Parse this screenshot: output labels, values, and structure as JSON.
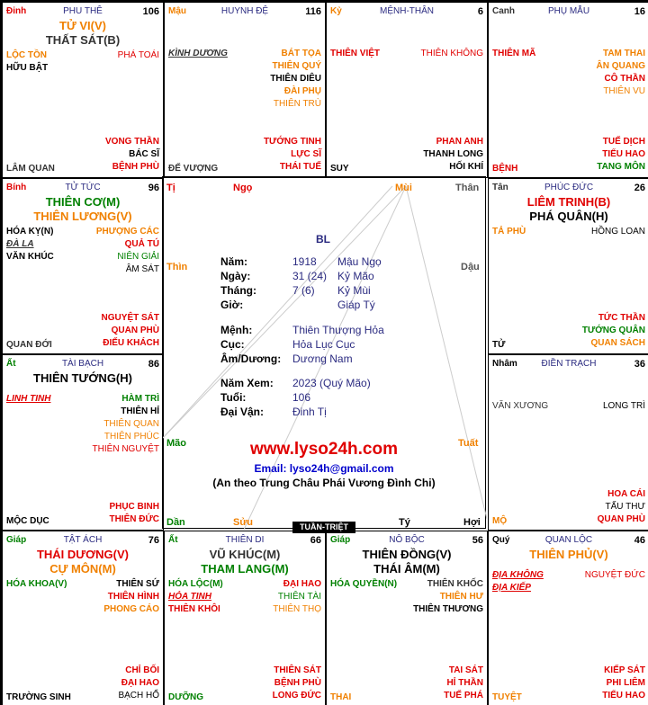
{
  "colors": {
    "red": "#e00000",
    "orange": "#f08000",
    "green": "#008000",
    "black": "#000000",
    "navy": "#2a2a80",
    "blue": "#0000cc"
  },
  "center": {
    "bl": "BL",
    "branches": {
      "ti": "Tị",
      "ngo": "Ngọ",
      "mui": "Mùi",
      "than": "Thân",
      "thin": "Thìn",
      "dau": "Dậu",
      "mao": "Mão",
      "tuat": "Tuất",
      "dan": "Dần",
      "suu": "Sửu",
      "ty": "Tý",
      "hoi": "Hợi"
    },
    "rows": [
      {
        "label": "Năm:",
        "v1": "1918",
        "v2": "Mậu Ngọ"
      },
      {
        "label": "Ngày:",
        "v1": "31 (24)",
        "v2": "Kỷ Mão"
      },
      {
        "label": "Tháng:",
        "v1": "7 (6)",
        "v2": "Kỷ Mùi"
      },
      {
        "label": "Giờ:",
        "v1": "",
        "v2": "Giáp Tý"
      }
    ],
    "rows2": [
      {
        "label": "Mệnh:",
        "v1": "Thiên Thượng Hỏa"
      },
      {
        "label": "Cục:",
        "v1": "Hỏa Lục Cục"
      },
      {
        "label": "Âm/Dương:",
        "v1": "Dương Nam"
      }
    ],
    "rows3": [
      {
        "label": "Năm Xem:",
        "v1": "2023 (Quý Mão)"
      },
      {
        "label": "Tuổi:",
        "v1": "106"
      },
      {
        "label": "Đại Vận:",
        "v1": "Đinh Tị"
      }
    ],
    "site": "www.lyso24h.com",
    "email": "Email: lyso24h@gmail.com",
    "note": "(An theo Trung Châu Phái Vương Đình Chi)",
    "tuan_triet": "TUẦN-TRIỆT"
  },
  "cells": [
    {
      "id": "ty",
      "can": "Đinh",
      "cung": "PHU THÊ",
      "num": "106",
      "main": [
        {
          "t": "TỬ VI(V)",
          "c": "orange"
        },
        {
          "t": "THẤT SÁT(B)",
          "c": "dim"
        }
      ],
      "left": [
        {
          "t": "LỘC TỒN",
          "c": "orange"
        },
        {
          "t": "HỮU BẬT",
          "c": "black"
        }
      ],
      "right": [
        {
          "t": "PHÁ TOÁI",
          "c": "red",
          "n": 1
        }
      ],
      "br": [
        {
          "t": "VONG THẦN",
          "c": "red"
        },
        {
          "t": "BÁC SĨ",
          "c": "black"
        },
        {
          "t": "BỆNH PHÙ",
          "c": "red"
        }
      ],
      "bl": {
        "t": "LÂM QUAN",
        "c": "dim"
      }
    },
    {
      "id": "ngo",
      "can": "Mậu",
      "cung": "HUYNH ĐỆ",
      "num": "116",
      "main": [],
      "left": [
        {
          "t": "KÌNH DƯƠNG",
          "c": "dim",
          "u": 1
        }
      ],
      "right": [
        {
          "t": "BÁT TỌA",
          "c": "orange"
        },
        {
          "t": "THIÊN QUÝ",
          "c": "orange"
        },
        {
          "t": "THIÊN DIÊU",
          "c": "black"
        },
        {
          "t": "ĐÀI PHỤ",
          "c": "orange"
        },
        {
          "t": "THIÊN TRÙ",
          "c": "orange",
          "n": 1
        }
      ],
      "br": [
        {
          "t": "TƯỚNG TINH",
          "c": "red"
        },
        {
          "t": "LỰC SĨ",
          "c": "red"
        },
        {
          "t": "THÁI TUẾ",
          "c": "red"
        }
      ],
      "bl": {
        "t": "ĐẾ VƯỢNG",
        "c": "dim"
      }
    },
    {
      "id": "mui",
      "can": "Kỷ",
      "cung": "MỆNH-THÂN",
      "num": "6",
      "main": [],
      "left": [
        {
          "t": "THIÊN VIỆT",
          "c": "red"
        }
      ],
      "right": [
        {
          "t": "THIÊN KHÔNG",
          "c": "red",
          "n": 1
        }
      ],
      "br": [
        {
          "t": "PHAN ANH",
          "c": "red"
        },
        {
          "t": "THANH LONG",
          "c": "black"
        },
        {
          "t": "HỐI KHÍ",
          "c": "black"
        }
      ],
      "bl": {
        "t": "SUY",
        "c": "black"
      }
    },
    {
      "id": "than",
      "can": "Canh",
      "cung": "PHỤ MẪU",
      "num": "16",
      "main": [],
      "left": [
        {
          "t": "THIÊN MÃ",
          "c": "red"
        }
      ],
      "right": [
        {
          "t": "TAM THAI",
          "c": "orange"
        },
        {
          "t": "ÂN QUANG",
          "c": "orange"
        },
        {
          "t": "CÔ THẦN",
          "c": "red"
        },
        {
          "t": "THIÊN VU",
          "c": "orange",
          "n": 1
        }
      ],
      "br": [
        {
          "t": "TUẾ DỊCH",
          "c": "red"
        },
        {
          "t": "TIỂU HAO",
          "c": "red"
        },
        {
          "t": "TANG MÔN",
          "c": "green"
        }
      ],
      "bl": {
        "t": "BỆNH",
        "c": "red"
      }
    },
    {
      "id": "thin",
      "can": "Bính",
      "cung": "TỬ TỨC",
      "num": "96",
      "main": [
        {
          "t": "THIÊN CƠ(M)",
          "c": "green"
        },
        {
          "t": "THIÊN LƯƠNG(V)",
          "c": "orange"
        }
      ],
      "left": [
        {
          "t": "HÓA KỴ(N)",
          "c": "black"
        },
        {
          "t": "ĐÀ LA",
          "c": "dim",
          "u": 1
        },
        {
          "t": "VĂN KHÚC",
          "c": "black"
        }
      ],
      "right": [
        {
          "t": "PHƯỢNG CÁC",
          "c": "orange"
        },
        {
          "t": "QUẢ TÚ",
          "c": "red"
        },
        {
          "t": "NIÊN GIẢI",
          "c": "green",
          "n": 1
        },
        {
          "t": "ÂM SÁT",
          "c": "black",
          "n": 1
        }
      ],
      "br": [
        {
          "t": "NGUYỆT SÁT",
          "c": "red"
        },
        {
          "t": "QUAN PHÙ",
          "c": "red"
        },
        {
          "t": "ĐIẾU KHÁCH",
          "c": "red"
        }
      ],
      "bl": {
        "t": "QUAN ĐỚI",
        "c": "dim"
      }
    },
    {
      "id": "dau",
      "can": "Tân",
      "cung": "PHÚC ĐỨC",
      "num": "26",
      "main": [
        {
          "t": "LIÊM TRINH(B)",
          "c": "red"
        },
        {
          "t": "PHÁ QUÂN(H)",
          "c": "black"
        }
      ],
      "left": [
        {
          "t": "TẢ PHÙ",
          "c": "orange"
        }
      ],
      "right": [
        {
          "t": "HỒNG LOAN",
          "c": "black",
          "n": 1
        }
      ],
      "br": [
        {
          "t": "TỨC THẦN",
          "c": "red"
        },
        {
          "t": "TƯỚNG QUÂN",
          "c": "green"
        },
        {
          "t": "QUAN SÁCH",
          "c": "orange"
        }
      ],
      "bl": {
        "t": "TỬ",
        "c": "black"
      }
    },
    {
      "id": "mao",
      "can": "Ất",
      "cung": "TÀI BẠCH",
      "num": "86",
      "main": [
        {
          "t": "THIÊN TƯỚNG(H)",
          "c": "black"
        }
      ],
      "left": [
        {
          "t": "LINH TINH",
          "c": "red",
          "u": 1
        }
      ],
      "right": [
        {
          "t": "HÀM TRÌ",
          "c": "green"
        },
        {
          "t": "THIÊN HỈ",
          "c": "black"
        },
        {
          "t": "THIÊN QUAN",
          "c": "orange",
          "n": 1
        },
        {
          "t": "THIÊN PHÚC",
          "c": "orange",
          "n": 1
        },
        {
          "t": "THIÊN NGUYỆT",
          "c": "red",
          "n": 1
        }
      ],
      "br": [
        {
          "t": "PHỤC BINH",
          "c": "red"
        },
        {
          "t": "THIÊN ĐỨC",
          "c": "red"
        }
      ],
      "bl": {
        "t": "MỘC DỤC",
        "c": "black"
      }
    },
    {
      "id": "tuat",
      "can": "Nhâm",
      "cung": "ĐIỀN TRẠCH",
      "num": "36",
      "main": [],
      "left": [
        {
          "t": "VĂN XƯƠNG",
          "c": "dim",
          "n": 1
        }
      ],
      "right": [
        {
          "t": "LONG TRÌ",
          "c": "black",
          "n": 1
        }
      ],
      "br": [
        {
          "t": "HOA CÁI",
          "c": "red"
        },
        {
          "t": "TẤU THƯ",
          "c": "black",
          "n": 1
        },
        {
          "t": "QUAN PHÙ",
          "c": "red"
        }
      ],
      "bl": {
        "t": "MỘ",
        "c": "orange"
      }
    },
    {
      "id": "dan",
      "can": "Giáp",
      "cung": "TẬT ÁCH",
      "num": "76",
      "main": [
        {
          "t": "THÁI DƯƠNG(V)",
          "c": "red"
        },
        {
          "t": "CỰ MÔN(M)",
          "c": "orange"
        }
      ],
      "left": [
        {
          "t": "HÓA KHOA(V)",
          "c": "green"
        }
      ],
      "right": [
        {
          "t": "THIÊN SỨ",
          "c": "black"
        },
        {
          "t": "THIÊN HÌNH",
          "c": "red"
        },
        {
          "t": "PHONG CÁO",
          "c": "orange"
        }
      ],
      "br": [
        {
          "t": "CHỈ BỐI",
          "c": "red"
        },
        {
          "t": "ĐẠI HAO",
          "c": "red"
        },
        {
          "t": "BẠCH HỔ",
          "c": "black",
          "n": 1
        }
      ],
      "bl": {
        "t": "TRƯỜNG SINH",
        "c": "black"
      }
    },
    {
      "id": "suu",
      "can": "Ất",
      "cung": "THIÊN DI",
      "num": "66",
      "main": [
        {
          "t": "VŨ KHÚC(M)",
          "c": "dim"
        },
        {
          "t": "THAM LANG(M)",
          "c": "green"
        }
      ],
      "left": [
        {
          "t": "HÓA LỘC(M)",
          "c": "green"
        },
        {
          "t": "HỎA TINH",
          "c": "red",
          "u": 1
        },
        {
          "t": "THIÊN KHÔI",
          "c": "red"
        }
      ],
      "right": [
        {
          "t": "ĐẠI HAO",
          "c": "red"
        },
        {
          "t": "THIÊN TÀI",
          "c": "green",
          "n": 1
        },
        {
          "t": "THIÊN THỌ",
          "c": "orange",
          "n": 1
        }
      ],
      "br": [
        {
          "t": "THIÊN SÁT",
          "c": "red"
        },
        {
          "t": "BỆNH PHÙ",
          "c": "red"
        },
        {
          "t": "LONG ĐỨC",
          "c": "red"
        }
      ],
      "bl": {
        "t": "DƯỠNG",
        "c": "green"
      }
    },
    {
      "id": "ty2",
      "can": "Giáp",
      "cung": "NÔ BỘC",
      "num": "56",
      "main": [
        {
          "t": "THIÊN ĐỒNG(V)",
          "c": "black"
        },
        {
          "t": "THÁI ÂM(M)",
          "c": "black"
        }
      ],
      "left": [
        {
          "t": "HÓA QUYỀN(N)",
          "c": "green"
        }
      ],
      "right": [
        {
          "t": "THIÊN KHỐC",
          "c": "dim"
        },
        {
          "t": "THIÊN HƯ",
          "c": "orange"
        },
        {
          "t": "THIÊN THƯƠNG",
          "c": "black"
        }
      ],
      "br": [
        {
          "t": "TAI SÁT",
          "c": "red"
        },
        {
          "t": "HỈ THẦN",
          "c": "red"
        },
        {
          "t": "TUẾ PHÁ",
          "c": "red"
        }
      ],
      "bl": {
        "t": "THAI",
        "c": "orange"
      }
    },
    {
      "id": "hoi",
      "can": "Quý",
      "cung": "QUAN LỘC",
      "num": "46",
      "main": [
        {
          "t": "THIÊN PHỦ(V)",
          "c": "orange"
        }
      ],
      "left": [
        {
          "t": "ĐỊA KHÔNG",
          "c": "red",
          "u": 1
        },
        {
          "t": "ĐỊA KIẾP",
          "c": "red",
          "u": 1
        }
      ],
      "right": [
        {
          "t": "NGUYỆT ĐỨC",
          "c": "red",
          "n": 1
        }
      ],
      "br": [
        {
          "t": "KIẾP SÁT",
          "c": "red"
        },
        {
          "t": "PHI LIÊM",
          "c": "red"
        },
        {
          "t": "TIỂU HAO",
          "c": "red"
        }
      ],
      "bl": {
        "t": "TUYỆT",
        "c": "orange"
      }
    }
  ]
}
